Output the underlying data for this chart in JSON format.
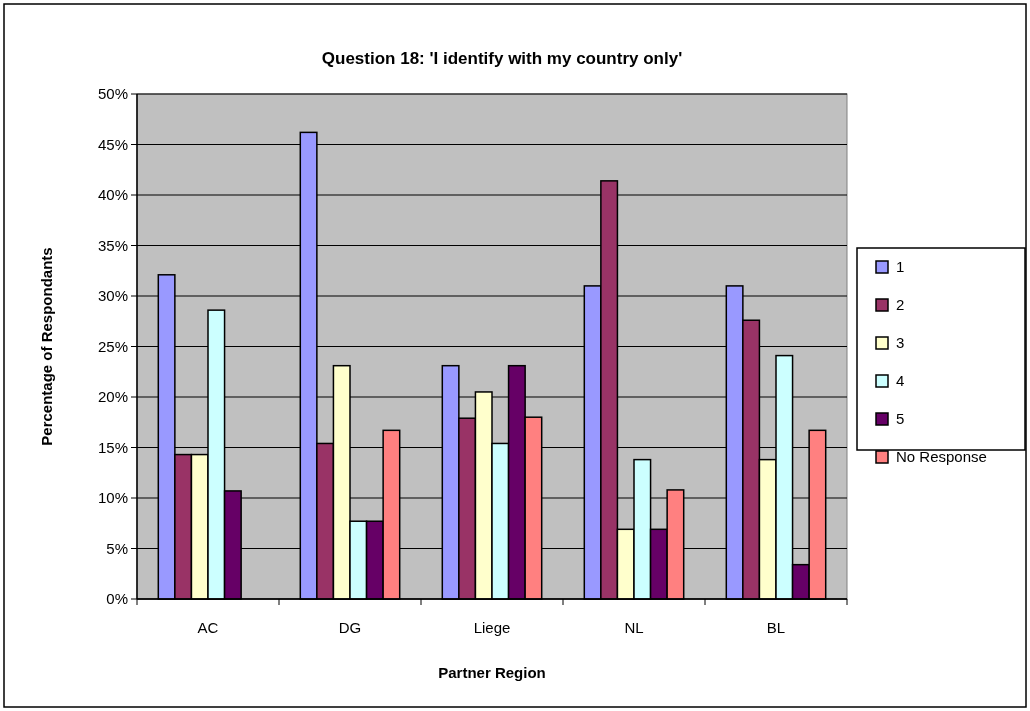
{
  "chart_data": {
    "type": "bar",
    "title": "Question 18: 'I identify with my country only'",
    "xlabel": "Partner Region",
    "ylabel": "Percentage of Respondants",
    "categories": [
      "AC",
      "DG",
      "Liege",
      "NL",
      "BL"
    ],
    "series": [
      {
        "name": "1",
        "color": "#9999ff",
        "values": [
          32.1,
          46.2,
          23.1,
          31.0,
          31.0
        ]
      },
      {
        "name": "2",
        "color": "#993366",
        "values": [
          14.3,
          15.4,
          17.9,
          41.4,
          27.6
        ]
      },
      {
        "name": "3",
        "color": "#ffffcc",
        "values": [
          14.3,
          23.1,
          20.5,
          6.9,
          13.8
        ]
      },
      {
        "name": "4",
        "color": "#ccffff",
        "values": [
          28.6,
          7.7,
          15.4,
          13.8,
          24.1
        ]
      },
      {
        "name": "5",
        "color": "#660066",
        "values": [
          10.7,
          7.7,
          23.1,
          6.9,
          3.4
        ]
      },
      {
        "name": "No Response",
        "color": "#ff8080",
        "values": [
          null,
          16.7,
          18.0,
          10.8,
          16.7
        ]
      }
    ],
    "ylim": [
      0,
      50
    ],
    "yticks": [
      {
        "value": 0,
        "label": "0%"
      },
      {
        "value": 5,
        "label": "5%"
      },
      {
        "value": 10,
        "label": "10%"
      },
      {
        "value": 15,
        "label": "15%"
      },
      {
        "value": 20,
        "label": "20%"
      },
      {
        "value": 25,
        "label": "25%"
      },
      {
        "value": 30,
        "label": "30%"
      },
      {
        "value": 35,
        "label": "35%"
      },
      {
        "value": 40,
        "label": "40%"
      },
      {
        "value": 45,
        "label": "45%"
      },
      {
        "value": 50,
        "label": "50%"
      }
    ],
    "grid": "y",
    "legend": "right"
  }
}
